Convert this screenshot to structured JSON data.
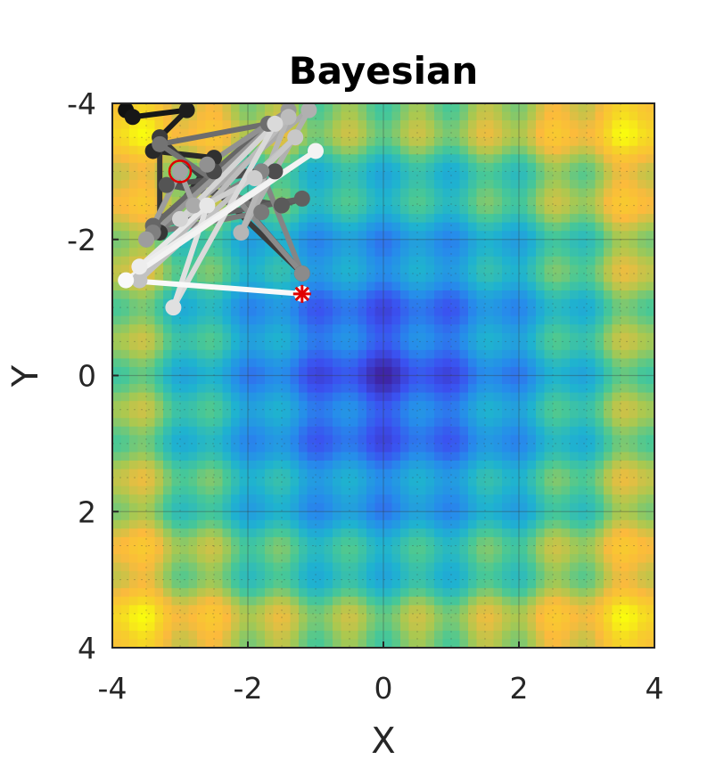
{
  "chart_data": {
    "type": "line",
    "title": "Bayesian",
    "xlabel": "X",
    "ylabel": "Y",
    "xlim": [
      -4,
      4
    ],
    "ylim": [
      -4,
      4
    ],
    "y_reversed": true,
    "xticks": [
      "-4",
      "-2",
      "0",
      "2",
      "4"
    ],
    "yticks": [
      "-4",
      "-2",
      "0",
      "2",
      "4"
    ],
    "grid": true,
    "background_function": "Rastrigin-like surface, minimum at (0,0)",
    "colors": {
      "low": "#3e26a8",
      "mid": "#1fb3cf",
      "high": "#f9fb0e",
      "path_start": "#111111",
      "path_end": "#ffffff",
      "start_marker": "#e00000",
      "end_marker": "#e00000"
    },
    "path": [
      [
        -3.8,
        -3.9
      ],
      [
        -3.7,
        -3.8
      ],
      [
        -2.9,
        -3.9
      ],
      [
        -3.3,
        -3.5
      ],
      [
        -3.4,
        -3.3
      ],
      [
        -2.5,
        -3.2
      ],
      [
        -3.3,
        -2.1
      ],
      [
        -3.3,
        -3.5
      ],
      [
        -1.2,
        -1.5
      ],
      [
        -2.5,
        -3.0
      ],
      [
        -1.6,
        -3.0
      ],
      [
        -3.2,
        -2.8
      ],
      [
        -1.5,
        -2.5
      ],
      [
        -1.2,
        -2.6
      ],
      [
        -3.4,
        -2.2
      ],
      [
        -1.7,
        -3.7
      ],
      [
        -3.3,
        -3.4
      ],
      [
        -1.8,
        -2.4
      ],
      [
        -3.4,
        -2.1
      ],
      [
        -1.8,
        -3.0
      ],
      [
        -1.2,
        -1.5
      ],
      [
        -2.6,
        -3.1
      ],
      [
        -1.4,
        -3.9
      ],
      [
        -3.5,
        -2.0
      ],
      [
        -3.0,
        -3.0
      ],
      [
        -2.8,
        -2.5
      ],
      [
        -1.1,
        -3.9
      ],
      [
        -2.1,
        -2.1
      ],
      [
        -1.4,
        -3.8
      ],
      [
        -3.6,
        -1.4
      ],
      [
        -1.3,
        -3.5
      ],
      [
        -1.9,
        -2.9
      ],
      [
        -3.0,
        -2.3
      ],
      [
        -1.6,
        -3.7
      ],
      [
        -3.1,
        -1.0
      ],
      [
        -2.6,
        -2.5
      ],
      [
        -3.6,
        -1.6
      ],
      [
        -1.0,
        -3.3
      ],
      [
        -3.8,
        -1.4
      ],
      [
        -1.2,
        -1.2
      ]
    ],
    "start_point": [
      -3.0,
      -3.0
    ],
    "end_point": [
      -1.2,
      -1.2
    ]
  }
}
